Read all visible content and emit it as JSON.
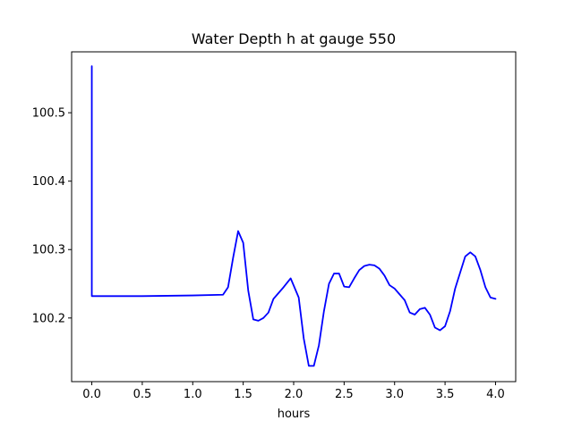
{
  "chart_data": {
    "type": "line",
    "title": "Water Depth h at gauge 550",
    "xlabel": "hours",
    "ylabel": "",
    "xlim": [
      -0.2,
      4.2
    ],
    "ylim": [
      100.107,
      100.589
    ],
    "x_ticks": [
      0.0,
      0.5,
      1.0,
      1.5,
      2.0,
      2.5,
      3.0,
      3.5,
      4.0
    ],
    "x_tick_labels": [
      "0.0",
      "0.5",
      "1.0",
      "1.5",
      "2.0",
      "2.5",
      "3.0",
      "3.5",
      "4.0"
    ],
    "y_ticks": [
      100.2,
      100.3,
      100.4,
      100.5
    ],
    "y_tick_labels": [
      "100.2",
      "100.3",
      "100.4",
      "100.5"
    ],
    "grid": false,
    "legend": "none",
    "series": [
      {
        "color": "#0000ff",
        "x": [
          0.0,
          0.0,
          0.0,
          0.5,
          1.0,
          1.3,
          1.35,
          1.4,
          1.45,
          1.5,
          1.55,
          1.6,
          1.65,
          1.7,
          1.75,
          1.8,
          1.9,
          1.97,
          2.05,
          2.1,
          2.15,
          2.2,
          2.25,
          2.3,
          2.35,
          2.4,
          2.45,
          2.5,
          2.55,
          2.6,
          2.65,
          2.7,
          2.75,
          2.8,
          2.85,
          2.9,
          2.95,
          3.0,
          3.1,
          3.15,
          3.2,
          3.25,
          3.3,
          3.35,
          3.4,
          3.45,
          3.5,
          3.55,
          3.6,
          3.7,
          3.75,
          3.8,
          3.85,
          3.9,
          3.95,
          4.0
        ],
        "y": [
          100.568,
          100.568,
          100.232,
          100.232,
          100.233,
          100.234,
          100.245,
          100.288,
          100.327,
          100.31,
          100.24,
          100.198,
          100.196,
          100.2,
          100.208,
          100.228,
          100.245,
          100.258,
          100.23,
          100.17,
          100.13,
          100.13,
          100.16,
          100.21,
          100.25,
          100.265,
          100.265,
          100.246,
          100.245,
          100.258,
          100.27,
          100.276,
          100.278,
          100.277,
          100.272,
          100.262,
          100.248,
          100.243,
          100.226,
          100.208,
          100.205,
          100.213,
          100.215,
          100.205,
          100.186,
          100.182,
          100.188,
          100.21,
          100.243,
          100.29,
          100.296,
          100.29,
          100.27,
          100.245,
          100.23,
          100.228
        ]
      }
    ]
  }
}
